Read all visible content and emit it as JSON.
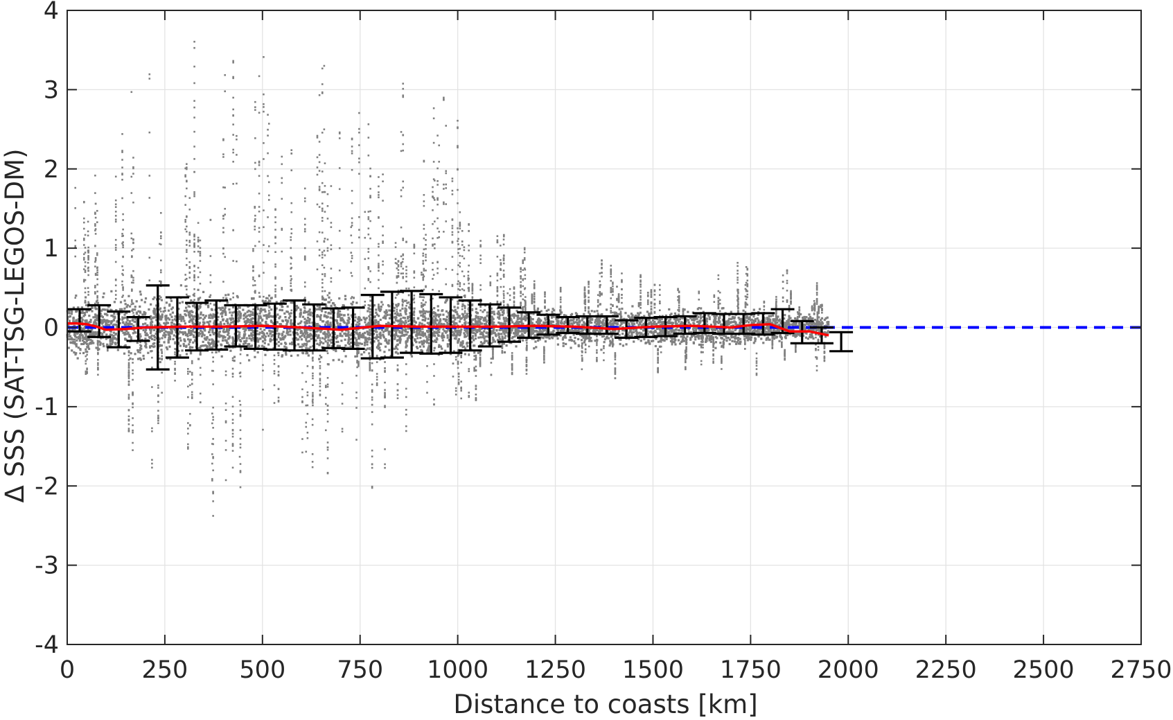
{
  "chart_data": {
    "type": "scatter",
    "title": "",
    "xlabel": "Distance to coasts [km]",
    "ylabel": "Δ SSS (SAT-TSG-LEGOS-DM)",
    "xlim": [
      0,
      2750
    ],
    "ylim": [
      -4,
      4
    ],
    "x_ticks": [
      0,
      250,
      500,
      750,
      1000,
      1250,
      1500,
      1750,
      2000,
      2250,
      2500,
      2750
    ],
    "x_tick_labels": [
      "0",
      "250",
      "500",
      "750",
      "1000",
      "1250",
      "1500",
      "1750",
      "2000",
      "2250",
      "2500",
      "2750"
    ],
    "y_ticks": [
      -4,
      -3,
      -2,
      -1,
      0,
      1,
      2,
      3,
      4
    ],
    "y_tick_labels": [
      "-4",
      "-3",
      "-2",
      "-1",
      "0",
      "1",
      "2",
      "3",
      "4"
    ],
    "grid": true,
    "colors": {
      "scatter": "#808080",
      "mean_line": "#ff0000",
      "zero_line": "#0000ff",
      "error_bars": "#000000"
    },
    "zero_line": {
      "y": 0,
      "style": "dashed",
      "x_range": [
        0,
        2750
      ]
    },
    "scatter_envelope": {
      "description_of": "dense point cloud of differences",
      "x": [
        0,
        100,
        200,
        300,
        400,
        500,
        600,
        700,
        800,
        900,
        1000,
        1100,
        1200,
        1300,
        1400,
        1500,
        1600,
        1700,
        1800,
        1900,
        1950
      ],
      "core_spread": [
        0.45,
        0.5,
        0.55,
        0.55,
        0.55,
        0.5,
        0.5,
        0.5,
        0.45,
        0.45,
        0.4,
        0.35,
        0.3,
        0.3,
        0.3,
        0.3,
        0.3,
        0.3,
        0.25,
        0.2,
        0.2
      ],
      "outlier_top": [
        1.5,
        2.5,
        3.6,
        4.0,
        4.0,
        4.0,
        4.0,
        3.0,
        3.0,
        2.8,
        2.8,
        1.2,
        0.6,
        0.5,
        0.8,
        0.6,
        0.6,
        0.6,
        1.2,
        0.4,
        0.3
      ],
      "outlier_bottom": [
        -0.5,
        -0.6,
        -2.0,
        -2.0,
        -2.4,
        -2.3,
        -2.1,
        -1.8,
        -1.8,
        -1.5,
        -1.3,
        -0.5,
        -0.4,
        -0.4,
        -0.4,
        -0.4,
        -0.4,
        -0.4,
        -0.4,
        -0.3,
        -0.3
      ]
    },
    "error_bars": {
      "x": [
        0,
        50,
        100,
        150,
        200,
        250,
        300,
        350,
        400,
        450,
        500,
        550,
        600,
        650,
        700,
        750,
        800,
        850,
        900,
        950,
        1000,
        1050,
        1100,
        1150,
        1200,
        1250,
        1300,
        1350,
        1400,
        1450,
        1500,
        1550,
        1600,
        1650,
        1700,
        1750,
        1800,
        1850,
        1900,
        1950
      ],
      "mean": [
        0.05,
        0.03,
        0.0,
        -0.02,
        0.0,
        0.0,
        0.01,
        0.02,
        0.01,
        0.01,
        0.02,
        0.01,
        0.01,
        -0.01,
        -0.02,
        0.01,
        0.02,
        0.03,
        0.02,
        0.01,
        0.01,
        0.01,
        0.02,
        0.02,
        0.01,
        0.01,
        0.02,
        0.02,
        -0.01,
        0.0,
        0.01,
        0.02,
        0.03,
        0.02,
        0.02,
        0.03,
        0.03,
        -0.02,
        -0.05,
        -0.08
      ],
      "err_low": [
        -0.1,
        -0.15,
        -0.25,
        -0.15,
        -0.53,
        -0.38,
        -0.3,
        -0.3,
        -0.25,
        -0.28,
        -0.3,
        -0.3,
        -0.3,
        -0.25,
        -0.25,
        -0.4,
        -0.4,
        -0.35,
        -0.35,
        -0.33,
        -0.3,
        -0.25,
        -0.2,
        -0.15,
        -0.1,
        -0.08,
        -0.1,
        -0.1,
        -0.12,
        -0.12,
        -0.12,
        -0.1,
        -0.1,
        -0.1,
        -0.1,
        -0.12,
        -0.1,
        -0.18,
        -0.15,
        -0.22
      ],
      "err_high": [
        0.18,
        0.25,
        0.2,
        0.15,
        0.53,
        0.38,
        0.3,
        0.32,
        0.27,
        0.27,
        0.28,
        0.33,
        0.28,
        0.25,
        0.27,
        0.4,
        0.43,
        0.43,
        0.4,
        0.37,
        0.33,
        0.28,
        0.23,
        0.17,
        0.15,
        0.12,
        0.12,
        0.12,
        0.1,
        0.12,
        0.12,
        0.12,
        0.15,
        0.15,
        0.15,
        0.15,
        0.2,
        0.1,
        0.05,
        0.02
      ]
    },
    "mean_line": {
      "x": [
        0,
        25,
        50,
        75,
        100,
        150,
        200,
        300,
        400,
        500,
        600,
        700,
        800,
        900,
        1000,
        1100,
        1200,
        1300,
        1400,
        1500,
        1600,
        1700,
        1750,
        1800,
        1850,
        1900,
        1950
      ],
      "y": [
        0.05,
        0.05,
        0.04,
        0.01,
        -0.03,
        -0.02,
        0.0,
        0.01,
        0.01,
        0.02,
        0.0,
        -0.03,
        0.02,
        0.01,
        0.01,
        0.01,
        0.02,
        0.01,
        -0.02,
        0.01,
        0.02,
        0.0,
        0.03,
        0.04,
        -0.05,
        -0.05,
        -0.1
      ]
    }
  }
}
